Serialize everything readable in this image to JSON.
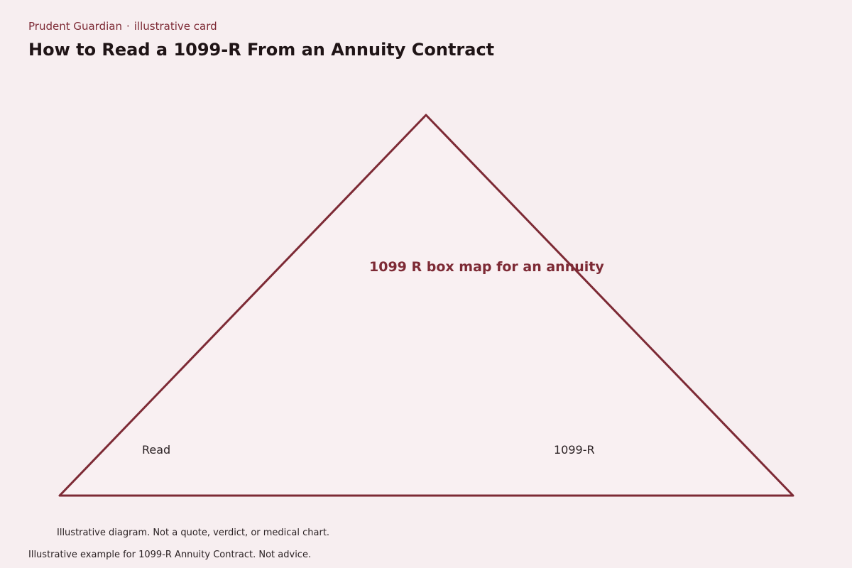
{
  "header": {
    "brand": "Prudent Guardian",
    "separator": "·",
    "card_type": "illustrative card",
    "title": "How to Read a 1099-R From an Annuity Contract"
  },
  "diagram": {
    "shape": "triangle",
    "center_label": "1099 R box map for an annuity",
    "corner_labels": {
      "left": "Read",
      "right": "1099-R"
    },
    "colors": {
      "outline": "#7d2a35",
      "fill": "#f9f0f2",
      "background": "#f7eef0"
    }
  },
  "notes": {
    "disclaimer": "Illustrative diagram. Not a quote, verdict, or medical chart.",
    "footer": "Illustrative example for 1099-R Annuity Contract. Not advice."
  }
}
